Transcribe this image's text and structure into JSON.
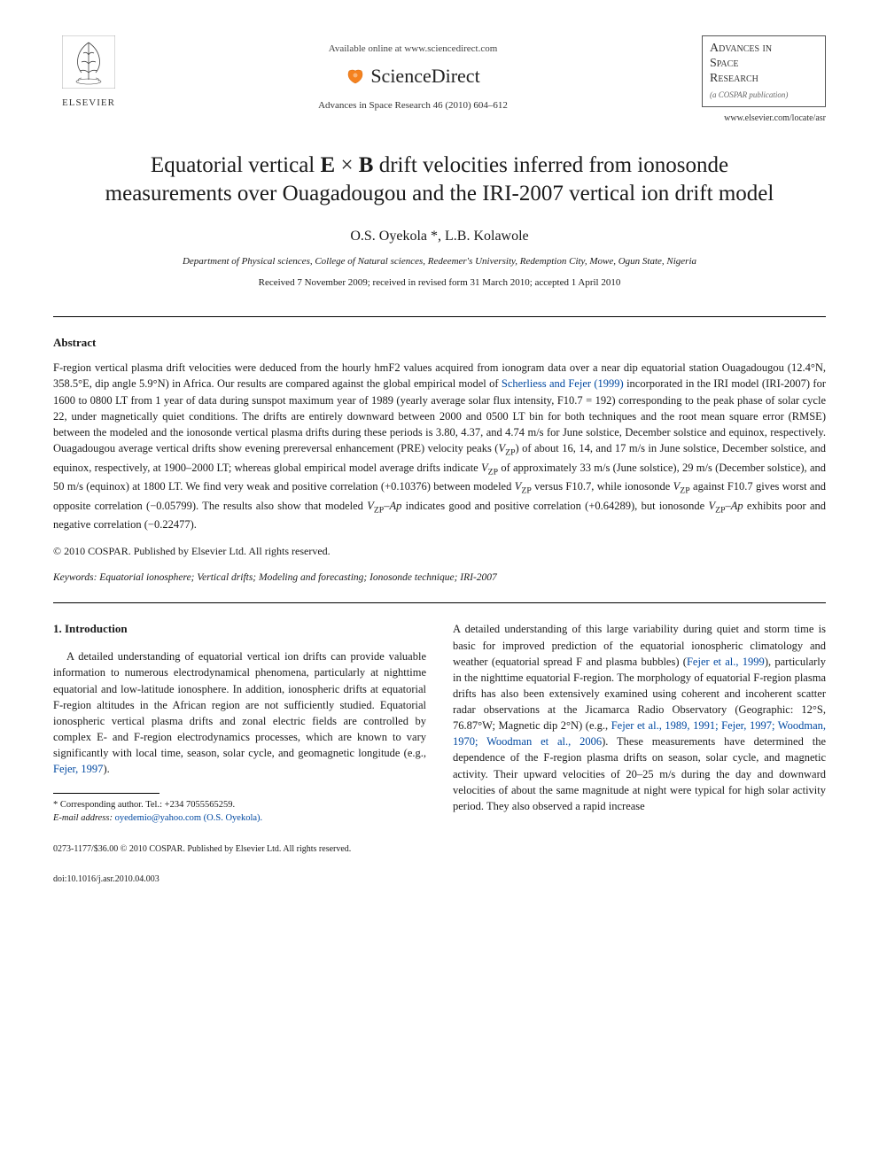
{
  "header": {
    "publisher_name": "ELSEVIER",
    "available_text": "Available online at www.sciencedirect.com",
    "sd_brand": "ScienceDirect",
    "journal_citation": "Advances in Space Research 46 (2010) 604–612",
    "journal_name_l1": "Advances in",
    "journal_name_l2": "Space",
    "journal_name_l3": "Research",
    "cospar": "(a COSPAR publication)",
    "journal_url": "www.elsevier.com/locate/asr"
  },
  "article": {
    "title": "Equatorial vertical E × B drift velocities inferred from ionosonde measurements over Ouagadougou and the IRI-2007 vertical ion drift model",
    "authors": "O.S. Oyekola *, L.B. Kolawole",
    "affiliation": "Department of Physical sciences, College of Natural sciences, Redeemer's University, Redemption City, Mowe, Ogun State, Nigeria",
    "dates": "Received 7 November 2009; received in revised form 31 March 2010; accepted 1 April 2010"
  },
  "abstract": {
    "heading": "Abstract",
    "body_html": "F-region vertical plasma drift velocities were deduced from the hourly hmF2 values acquired from ionogram data over a near dip equatorial station Ouagadougou (12.4°N, 358.5°E, dip angle 5.9°N) in Africa. Our results are compared against the global empirical model of <span class='link'>Scherliess and Fejer (1999)</span> incorporated in the IRI model (IRI-2007) for 1600 to 0800 LT from 1 year of data during sunspot maximum year of 1989 (yearly average solar flux intensity, F10.7 = 192) corresponding to the peak phase of solar cycle 22, under magnetically quiet conditions. The drifts are entirely downward between 2000 and 0500 LT bin for both techniques and the root mean square error (RMSE) between the modeled and the ionosonde vertical plasma drifts during these periods is 3.80, 4.37, and 4.74 m/s for June solstice, December solstice and equinox, respectively. Ouagadougou average vertical drifts show evening prereversal enhancement (PRE) velocity peaks (<span class='ital'>V</span><span class='sub'>ZP</span>) of about 16, 14, and 17 m/s in June solstice, December solstice, and equinox, respectively, at 1900–2000 LT; whereas global empirical model average drifts indicate <span class='ital'>V</span><span class='sub'>ZP</span> of approximately 33 m/s (June solstice), 29 m/s (December solstice), and 50 m/s (equinox) at 1800 LT. We find very weak and positive correlation (+0.10376) between modeled <span class='ital'>V</span><span class='sub'>ZP</span> versus F10.7, while ionosonde <span class='ital'>V</span><span class='sub'>ZP</span> against F10.7 gives worst and opposite correlation (−0.05799). The results also show that modeled <span class='ital'>V</span><span class='sub'>ZP</span>–<span class='ital'>Ap</span> indicates good and positive correlation (+0.64289), but ionosonde <span class='ital'>V</span><span class='sub'>ZP</span>–<span class='ital'>Ap</span> exhibits poor and negative correlation (−0.22477).",
    "copyright": "© 2010 COSPAR. Published by Elsevier Ltd. All rights reserved."
  },
  "keywords": {
    "label": "Keywords:",
    "text": " Equatorial ionosphere; Vertical drifts; Modeling and forecasting; Ionosonde technique; IRI-2007"
  },
  "section1": {
    "heading": "1. Introduction",
    "col1_html": "A detailed understanding of equatorial vertical ion drifts can provide valuable information to numerous electrodynamical phenomena, particularly at nighttime equatorial and low-latitude ionosphere. In addition, ionospheric drifts at equatorial F-region altitudes in the African region are not sufficiently studied. Equatorial ionospheric vertical plasma drifts and zonal electric fields are controlled by complex E- and F-region electrodynamics processes, which are known to vary significantly with local time, season, solar cycle, and geomagnetic longitude (e.g., <span class='link'>Fejer, 1997</span>).",
    "col2_html": "A detailed understanding of this large variability during quiet and storm time is basic for improved prediction of the equatorial ionospheric climatology and weather (equatorial spread F and plasma bubbles) (<span class='link'>Fejer et al., 1999</span>), particularly in the nighttime equatorial F-region. The morphology of equatorial F-region plasma drifts has also been extensively examined using coherent and incoherent scatter radar observations at the Jicamarca Radio Observatory (Geographic: 12°S, 76.87°W; Magnetic dip 2°N) (e.g., <span class='link'>Fejer et al., 1989, 1991; Fejer, 1997; Woodman, 1970; Woodman et al., 2006</span>). These measurements have determined the dependence of the F-region plasma drifts on season, solar cycle, and magnetic activity. Their upward velocities of 20–25 m/s during the day and downward velocities of about the same magnitude at night were typical for high solar activity period. They also observed a rapid increase"
  },
  "footnotes": {
    "corresponding": "* Corresponding author. Tel.: +234 7055565259.",
    "email_label": "E-mail address:",
    "email": " oyedemio@yahoo.com (O.S. Oyekola)."
  },
  "footer": {
    "line1": "0273-1177/$36.00 © 2010 COSPAR. Published by Elsevier Ltd. All rights reserved.",
    "line2": "doi:10.1016/j.asr.2010.04.003"
  },
  "colors": {
    "link": "#0048a0",
    "text": "#1a1a1a",
    "elsevier_orange": "#ed7d31",
    "sd_orange": "#f5821f"
  }
}
